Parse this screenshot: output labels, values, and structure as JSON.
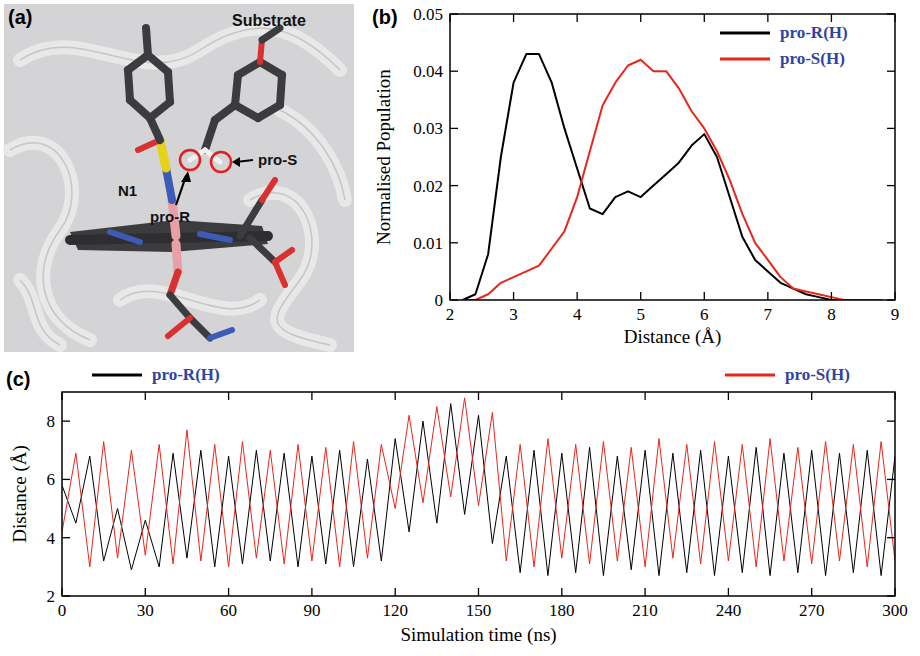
{
  "diagram": {
    "label": "(a)",
    "substrate": "Substrate",
    "n1": "N1",
    "pro_r": "pro-R",
    "pro_s": "pro-S"
  },
  "chart_data": [
    {
      "type": "line",
      "panel": "(b)",
      "x_label": "Distance (Å)",
      "y_label": "Normalised Population",
      "x": [
        2.2,
        2.4,
        2.6,
        2.8,
        3.0,
        3.2,
        3.4,
        3.6,
        3.8,
        4.0,
        4.2,
        4.4,
        4.6,
        4.8,
        5.0,
        5.2,
        5.4,
        5.6,
        5.8,
        6.0,
        6.2,
        6.4,
        6.6,
        6.8,
        7.0,
        7.2,
        7.4,
        7.6,
        7.8,
        8.0,
        8.2,
        8.4,
        8.6,
        8.8
      ],
      "series": [
        {
          "name": "pro-R(H)",
          "color": "#000000",
          "values": [
            0,
            0.001,
            0.008,
            0.025,
            0.038,
            0.043,
            0.043,
            0.038,
            0.03,
            0.023,
            0.016,
            0.015,
            0.018,
            0.019,
            0.018,
            0.02,
            0.022,
            0.024,
            0.027,
            0.029,
            0.025,
            0.018,
            0.011,
            0.007,
            0.005,
            0.003,
            0.002,
            0.001,
            0.0005,
            0,
            0,
            0,
            0,
            0
          ]
        },
        {
          "name": "pro-S(H)",
          "color": "#e8261b",
          "values": [
            0,
            0,
            0.001,
            0.003,
            0.004,
            0.005,
            0.006,
            0.009,
            0.012,
            0.018,
            0.026,
            0.034,
            0.038,
            0.041,
            0.042,
            0.04,
            0.04,
            0.037,
            0.033,
            0.03,
            0.026,
            0.021,
            0.015,
            0.01,
            0.007,
            0.004,
            0.002,
            0.0015,
            0.001,
            0.0005,
            0,
            0,
            0,
            0
          ]
        }
      ],
      "xlim": [
        2,
        9
      ],
      "ylim": [
        0,
        0.05
      ],
      "xticks": [
        2,
        3,
        4,
        5,
        6,
        7,
        8,
        9
      ],
      "yticks": [
        0,
        0.01,
        0.02,
        0.03,
        0.04,
        0.05
      ],
      "legend": "upper right"
    },
    {
      "type": "line",
      "panel": "(c)",
      "x_label": "Simulation time (ns)",
      "y_label": "Distance (Å)",
      "x": [
        0,
        5,
        10,
        15,
        20,
        25,
        30,
        35,
        40,
        45,
        50,
        55,
        60,
        65,
        70,
        75,
        80,
        85,
        90,
        95,
        100,
        105,
        110,
        115,
        120,
        125,
        130,
        135,
        140,
        145,
        150,
        155,
        160,
        165,
        170,
        175,
        180,
        185,
        190,
        195,
        200,
        205,
        210,
        215,
        220,
        225,
        230,
        235,
        240,
        245,
        250,
        255,
        260,
        265,
        270,
        275,
        280,
        285,
        290,
        295,
        300
      ],
      "series": [
        {
          "name": "pro-R(H)",
          "color": "#000000",
          "values": [
            5.8,
            4.5,
            6.8,
            3.2,
            5.0,
            2.9,
            4.6,
            3.0,
            6.9,
            3.3,
            7.0,
            3.0,
            6.8,
            3.1,
            7.0,
            3.2,
            6.9,
            3.0,
            6.8,
            3.1,
            7.0,
            3.0,
            6.7,
            3.2,
            7.4,
            4.2,
            8.0,
            4.5,
            8.6,
            4.8,
            8.2,
            3.8,
            6.8,
            2.8,
            7.0,
            2.7,
            6.9,
            2.8,
            7.1,
            2.7,
            6.8,
            2.9,
            7.0,
            2.7,
            6.9,
            2.8,
            7.0,
            2.7,
            6.8,
            2.8,
            7.1,
            2.7,
            6.9,
            2.8,
            7.0,
            2.7,
            6.9,
            2.8,
            7.0,
            2.7,
            6.8
          ]
        },
        {
          "name": "pro-S(H)",
          "color": "#e8261b",
          "values": [
            4.2,
            6.9,
            3.0,
            7.3,
            3.3,
            7.0,
            3.4,
            7.2,
            3.1,
            7.7,
            3.2,
            7.2,
            3.0,
            7.3,
            3.3,
            7.0,
            3.1,
            7.2,
            3.2,
            7.1,
            3.0,
            7.3,
            3.3,
            7.2,
            5.0,
            8.2,
            5.2,
            8.5,
            5.4,
            8.8,
            5.1,
            8.3,
            3.2,
            7.2,
            3.0,
            7.4,
            3.3,
            7.2,
            3.1,
            7.3,
            3.2,
            7.1,
            3.0,
            7.4,
            3.3,
            7.2,
            3.1,
            7.3,
            3.2,
            7.2,
            3.0,
            7.4,
            3.2,
            7.1,
            3.1,
            7.3,
            3.2,
            7.2,
            3.0,
            7.3,
            3.2
          ]
        }
      ],
      "xlim": [
        0,
        300
      ],
      "ylim": [
        2,
        9
      ],
      "xticks": [
        0,
        30,
        60,
        90,
        120,
        150,
        180,
        210,
        240,
        270,
        300
      ],
      "yticks": [
        2,
        4,
        6,
        8
      ],
      "legend": "top"
    }
  ]
}
